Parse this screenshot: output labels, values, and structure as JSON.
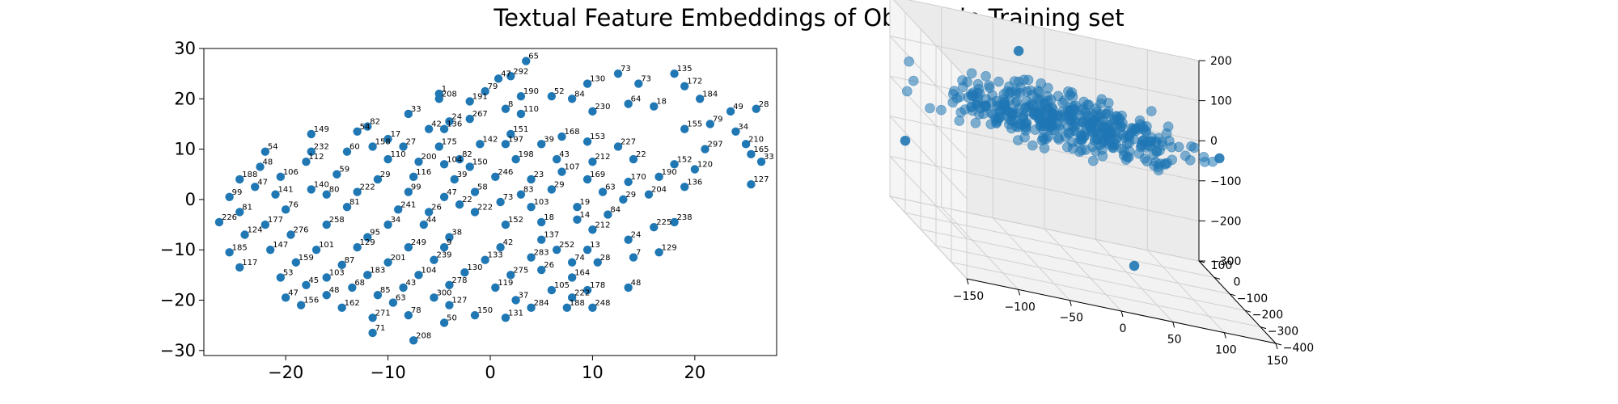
{
  "figure": {
    "title": "Textual Feature Embeddings of Objects in Training set"
  },
  "chart_data": [
    {
      "type": "scatter",
      "title": "",
      "xlabel": "",
      "ylabel": "",
      "xlim": [
        -28,
        28
      ],
      "ylim": [
        -31,
        30
      ],
      "xticks": [
        -20,
        -10,
        0,
        10,
        20
      ],
      "yticks": [
        -30,
        -20,
        -10,
        0,
        10,
        20,
        30
      ],
      "grid": false,
      "color": "#1f77b4",
      "points": [
        {
          "x": 3.5,
          "y": 27.5,
          "label": "65"
        },
        {
          "x": 0.8,
          "y": 24,
          "label": "47"
        },
        {
          "x": 2,
          "y": 24.5,
          "label": "292"
        },
        {
          "x": 12.5,
          "y": 25,
          "label": "73"
        },
        {
          "x": 18,
          "y": 25,
          "label": "135"
        },
        {
          "x": 14.5,
          "y": 23,
          "label": "73"
        },
        {
          "x": 19,
          "y": 22.5,
          "label": "172"
        },
        {
          "x": 9.5,
          "y": 23,
          "label": "130"
        },
        {
          "x": -0.5,
          "y": 21.5,
          "label": "79"
        },
        {
          "x": 3,
          "y": 20.5,
          "label": "190"
        },
        {
          "x": -5,
          "y": 21,
          "label": "1"
        },
        {
          "x": -5,
          "y": 20,
          "label": "208"
        },
        {
          "x": -2,
          "y": 19.5,
          "label": "191"
        },
        {
          "x": 6,
          "y": 20.5,
          "label": "52"
        },
        {
          "x": 8,
          "y": 20,
          "label": "84"
        },
        {
          "x": 20.5,
          "y": 20,
          "label": "184"
        },
        {
          "x": 23.5,
          "y": 17.5,
          "label": "49"
        },
        {
          "x": 26,
          "y": 18,
          "label": "28"
        },
        {
          "x": -8,
          "y": 17,
          "label": "33"
        },
        {
          "x": -4,
          "y": 15.5,
          "label": "24"
        },
        {
          "x": -2,
          "y": 16,
          "label": "267"
        },
        {
          "x": 1.5,
          "y": 18,
          "label": "8"
        },
        {
          "x": 3,
          "y": 17,
          "label": "110"
        },
        {
          "x": 10,
          "y": 17.5,
          "label": "230"
        },
        {
          "x": 13.5,
          "y": 19,
          "label": "64"
        },
        {
          "x": 16,
          "y": 18.5,
          "label": "18"
        },
        {
          "x": 21.5,
          "y": 15,
          "label": "79"
        },
        {
          "x": 24,
          "y": 13.5,
          "label": "34"
        },
        {
          "x": -12,
          "y": 14.5,
          "label": "82"
        },
        {
          "x": -13,
          "y": 13.5,
          "label": "54"
        },
        {
          "x": -17.5,
          "y": 13,
          "label": "149"
        },
        {
          "x": -6,
          "y": 14,
          "label": "42"
        },
        {
          "x": -10,
          "y": 12,
          "label": "17"
        },
        {
          "x": -4.5,
          "y": 14,
          "label": "136"
        },
        {
          "x": 2,
          "y": 13,
          "label": "151"
        },
        {
          "x": 7,
          "y": 12.5,
          "label": "168"
        },
        {
          "x": 19,
          "y": 14,
          "label": "155"
        },
        {
          "x": 25,
          "y": 11,
          "label": "210"
        },
        {
          "x": -11.5,
          "y": 10.5,
          "label": "158"
        },
        {
          "x": -8.5,
          "y": 10.5,
          "label": "27"
        },
        {
          "x": -5,
          "y": 10.5,
          "label": "175"
        },
        {
          "x": -1,
          "y": 11,
          "label": "142"
        },
        {
          "x": 1.5,
          "y": 11,
          "label": "197"
        },
        {
          "x": 5,
          "y": 11,
          "label": "39"
        },
        {
          "x": 9.5,
          "y": 11.5,
          "label": "153"
        },
        {
          "x": 12.5,
          "y": 10.5,
          "label": "227"
        },
        {
          "x": 21,
          "y": 10,
          "label": "297"
        },
        {
          "x": 25.5,
          "y": 9,
          "label": "165"
        },
        {
          "x": 26.5,
          "y": 7.5,
          "label": "33"
        },
        {
          "x": -17.5,
          "y": 9.5,
          "label": "232"
        },
        {
          "x": -22,
          "y": 9.5,
          "label": "54"
        },
        {
          "x": -14,
          "y": 9.5,
          "label": "60"
        },
        {
          "x": -10,
          "y": 8,
          "label": "110"
        },
        {
          "x": -7,
          "y": 7.5,
          "label": "200"
        },
        {
          "x": -4.5,
          "y": 7,
          "label": "104"
        },
        {
          "x": -3,
          "y": 8,
          "label": "82"
        },
        {
          "x": 2.5,
          "y": 8,
          "label": "198"
        },
        {
          "x": 6.5,
          "y": 8,
          "label": "43"
        },
        {
          "x": 10,
          "y": 7.5,
          "label": "212"
        },
        {
          "x": 14,
          "y": 8,
          "label": "22"
        },
        {
          "x": 18,
          "y": 7,
          "label": "152"
        },
        {
          "x": -22.5,
          "y": 6.5,
          "label": "48"
        },
        {
          "x": -18,
          "y": 7.5,
          "label": "112"
        },
        {
          "x": -2,
          "y": 6.5,
          "label": "150"
        },
        {
          "x": 7,
          "y": 5.5,
          "label": "107"
        },
        {
          "x": 16.5,
          "y": 4.5,
          "label": "190"
        },
        {
          "x": 20,
          "y": 6,
          "label": "120"
        },
        {
          "x": -24.5,
          "y": 4,
          "label": "188"
        },
        {
          "x": -20.5,
          "y": 4.5,
          "label": "106"
        },
        {
          "x": -15,
          "y": 5,
          "label": "59"
        },
        {
          "x": -11,
          "y": 4,
          "label": "29"
        },
        {
          "x": -7.5,
          "y": 4.5,
          "label": "116"
        },
        {
          "x": -3.5,
          "y": 4,
          "label": "39"
        },
        {
          "x": 0.5,
          "y": 4.5,
          "label": "246"
        },
        {
          "x": 4,
          "y": 4,
          "label": "23"
        },
        {
          "x": 9.5,
          "y": 4,
          "label": "169"
        },
        {
          "x": 13.5,
          "y": 3.5,
          "label": "170"
        },
        {
          "x": 19,
          "y": 2.5,
          "label": "136"
        },
        {
          "x": 25.5,
          "y": 3,
          "label": "127"
        },
        {
          "x": -23,
          "y": 2.5,
          "label": "47"
        },
        {
          "x": -17.5,
          "y": 2,
          "label": "140"
        },
        {
          "x": -13,
          "y": 1.5,
          "label": "222"
        },
        {
          "x": -8,
          "y": 1.5,
          "label": "99"
        },
        {
          "x": -1.5,
          "y": 1.5,
          "label": "58"
        },
        {
          "x": 6,
          "y": 2,
          "label": "29"
        },
        {
          "x": 11,
          "y": 1.5,
          "label": "63"
        },
        {
          "x": 15.5,
          "y": 1,
          "label": "204"
        },
        {
          "x": -25.5,
          "y": 0.5,
          "label": "99"
        },
        {
          "x": -21,
          "y": 1,
          "label": "141"
        },
        {
          "x": -16,
          "y": 1,
          "label": "80"
        },
        {
          "x": -4.5,
          "y": 0.5,
          "label": "47"
        },
        {
          "x": 3,
          "y": 1,
          "label": "83"
        },
        {
          "x": 13,
          "y": 0,
          "label": "29"
        },
        {
          "x": -24.5,
          "y": -2.5,
          "label": "81"
        },
        {
          "x": -20,
          "y": -2,
          "label": "76"
        },
        {
          "x": -14,
          "y": -1.5,
          "label": "81"
        },
        {
          "x": -9,
          "y": -2,
          "label": "241"
        },
        {
          "x": -3,
          "y": -1,
          "label": "22"
        },
        {
          "x": 1,
          "y": -0.5,
          "label": "73"
        },
        {
          "x": 4,
          "y": -1.5,
          "label": "103"
        },
        {
          "x": 8.5,
          "y": -1.5,
          "label": "19"
        },
        {
          "x": -6,
          "y": -2.5,
          "label": "26"
        },
        {
          "x": -1.5,
          "y": -2.5,
          "label": "222"
        },
        {
          "x": 11.5,
          "y": -3,
          "label": "84"
        },
        {
          "x": 18,
          "y": -4.5,
          "label": "238"
        },
        {
          "x": -26.5,
          "y": -4.5,
          "label": "226"
        },
        {
          "x": -22,
          "y": -5,
          "label": "177"
        },
        {
          "x": -16,
          "y": -5,
          "label": "258"
        },
        {
          "x": -10,
          "y": -5,
          "label": "34"
        },
        {
          "x": -6.5,
          "y": -5,
          "label": "44"
        },
        {
          "x": 1.5,
          "y": -5,
          "label": "152"
        },
        {
          "x": 5,
          "y": -4.5,
          "label": "18"
        },
        {
          "x": 8.5,
          "y": -4,
          "label": "14"
        },
        {
          "x": 10,
          "y": -6,
          "label": "212"
        },
        {
          "x": 16,
          "y": -5.5,
          "label": "225"
        },
        {
          "x": -24,
          "y": -7,
          "label": "124"
        },
        {
          "x": -19.5,
          "y": -7,
          "label": "276"
        },
        {
          "x": -12,
          "y": -7.5,
          "label": "95"
        },
        {
          "x": -4,
          "y": -7.5,
          "label": "38"
        },
        {
          "x": 5,
          "y": -8,
          "label": "137"
        },
        {
          "x": 13.5,
          "y": -8,
          "label": "24"
        },
        {
          "x": -25.5,
          "y": -10.5,
          "label": "185"
        },
        {
          "x": -21.5,
          "y": -10,
          "label": "147"
        },
        {
          "x": -17,
          "y": -10,
          "label": "101"
        },
        {
          "x": -13,
          "y": -9.5,
          "label": "129"
        },
        {
          "x": -8,
          "y": -9.5,
          "label": "249"
        },
        {
          "x": -4.5,
          "y": -9.5,
          "label": "9"
        },
        {
          "x": 1,
          "y": -9.5,
          "label": "42"
        },
        {
          "x": 6.5,
          "y": -10,
          "label": "252"
        },
        {
          "x": 9.5,
          "y": -10,
          "label": "13"
        },
        {
          "x": 16.5,
          "y": -10.5,
          "label": "129"
        },
        {
          "x": -24.5,
          "y": -13.5,
          "label": "117"
        },
        {
          "x": -19,
          "y": -12.5,
          "label": "159"
        },
        {
          "x": -14.5,
          "y": -13,
          "label": "87"
        },
        {
          "x": -10,
          "y": -12.5,
          "label": "201"
        },
        {
          "x": -5.5,
          "y": -12,
          "label": "239"
        },
        {
          "x": -0.5,
          "y": -12,
          "label": "133"
        },
        {
          "x": 4,
          "y": -11.5,
          "label": "283"
        },
        {
          "x": 8,
          "y": -12.5,
          "label": "74"
        },
        {
          "x": 10.5,
          "y": -12.5,
          "label": "28"
        },
        {
          "x": 14,
          "y": -11.5,
          "label": "7"
        },
        {
          "x": -20.5,
          "y": -15.5,
          "label": "53"
        },
        {
          "x": -16,
          "y": -15.5,
          "label": "103"
        },
        {
          "x": -12,
          "y": -15,
          "label": "183"
        },
        {
          "x": -7,
          "y": -15,
          "label": "104"
        },
        {
          "x": -2.5,
          "y": -14.5,
          "label": "130"
        },
        {
          "x": 2,
          "y": -15,
          "label": "275"
        },
        {
          "x": 5,
          "y": -14,
          "label": "26"
        },
        {
          "x": 8,
          "y": -15.5,
          "label": "164"
        },
        {
          "x": -18,
          "y": -17,
          "label": "45"
        },
        {
          "x": -13.5,
          "y": -17.5,
          "label": "68"
        },
        {
          "x": -8.5,
          "y": -17.5,
          "label": "43"
        },
        {
          "x": -4,
          "y": -17,
          "label": "278"
        },
        {
          "x": 0.5,
          "y": -17.5,
          "label": "119"
        },
        {
          "x": 6,
          "y": -18,
          "label": "105"
        },
        {
          "x": 9.5,
          "y": -18,
          "label": "178"
        },
        {
          "x": 13.5,
          "y": -17.5,
          "label": "48"
        },
        {
          "x": -20,
          "y": -19.5,
          "label": "47"
        },
        {
          "x": -16,
          "y": -19,
          "label": "48"
        },
        {
          "x": -11,
          "y": -19,
          "label": "85"
        },
        {
          "x": -5.5,
          "y": -19.5,
          "label": "300"
        },
        {
          "x": 2.5,
          "y": -20,
          "label": "37"
        },
        {
          "x": 8,
          "y": -19.5,
          "label": "222"
        },
        {
          "x": -18.5,
          "y": -21,
          "label": "156"
        },
        {
          "x": -14.5,
          "y": -21.5,
          "label": "162"
        },
        {
          "x": -9.5,
          "y": -20.5,
          "label": "63"
        },
        {
          "x": -4,
          "y": -21,
          "label": "127"
        },
        {
          "x": 4,
          "y": -21.5,
          "label": "284"
        },
        {
          "x": 7.5,
          "y": -21.5,
          "label": "188"
        },
        {
          "x": 10,
          "y": -21.5,
          "label": "248"
        },
        {
          "x": -11.5,
          "y": -23.5,
          "label": "271"
        },
        {
          "x": -8,
          "y": -23,
          "label": "78"
        },
        {
          "x": -1.5,
          "y": -23,
          "label": "150"
        },
        {
          "x": 1.5,
          "y": -23.5,
          "label": "131"
        },
        {
          "x": -4.5,
          "y": -24.5,
          "label": "50"
        },
        {
          "x": -11.5,
          "y": -26.5,
          "label": "71"
        },
        {
          "x": -7.5,
          "y": -28,
          "label": "208"
        }
      ]
    },
    {
      "type": "scatter3d",
      "title": "",
      "xlabel": "",
      "ylabel": "",
      "zlabel": "",
      "xlim": [
        -150,
        150
      ],
      "ylim": [
        -400,
        100
      ],
      "zlim": [
        -300,
        200
      ],
      "xticks": [
        -150,
        -100,
        -50,
        0,
        50,
        100,
        150
      ],
      "yticks": [
        -400,
        -300,
        -200,
        -100,
        0,
        100
      ],
      "zticks": [
        -300,
        -200,
        -100,
        0,
        100,
        200
      ],
      "grid": true,
      "color": "#1f77b4",
      "alpha": 0.55,
      "cluster_center": {
        "x": 10,
        "y": 40,
        "z": 0
      },
      "cluster_spread": {
        "x": 60,
        "y": 45,
        "z": 30
      },
      "cluster_count": 420,
      "outliers": [
        {
          "x": -150,
          "y": 0,
          "z": -120
        },
        {
          "x": -25,
          "y": 100,
          "z": 130
        },
        {
          "x": 35,
          "y": -250,
          "z": -230
        },
        {
          "x": 155,
          "y": 0,
          "z": 0
        }
      ]
    }
  ]
}
